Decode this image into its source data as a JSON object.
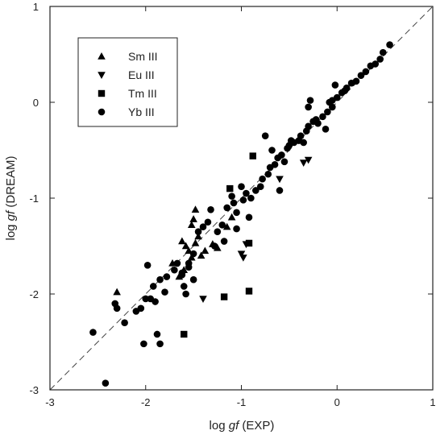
{
  "chart_data": {
    "type": "scatter",
    "title": "",
    "xlabel_prefix": "log ",
    "xlabel_italic": "gf",
    "xlabel_suffix": " (EXP)",
    "ylabel_prefix": "log ",
    "ylabel_italic": "gf",
    "ylabel_suffix": " (DREAM)",
    "xlim": [
      -3,
      1
    ],
    "ylim": [
      -3,
      1
    ],
    "xticks": [
      -3,
      -2,
      -1,
      0,
      1
    ],
    "yticks": [
      -3,
      -2,
      -1,
      0,
      1
    ],
    "grid": false,
    "legend_position": "top-left",
    "reference_line": "y = x (dashed)",
    "series": [
      {
        "name": "Sm III",
        "marker": "triangle-up",
        "points": [
          [
            -2.3,
            -1.98
          ],
          [
            -1.5,
            -1.22
          ],
          [
            -1.48,
            -1.12
          ],
          [
            -1.52,
            -1.28
          ],
          [
            -1.62,
            -1.45
          ],
          [
            -1.58,
            -1.5
          ],
          [
            -1.55,
            -1.55
          ],
          [
            -1.48,
            -1.47
          ],
          [
            -1.45,
            -1.4
          ],
          [
            -1.52,
            -1.62
          ],
          [
            -1.42,
            -1.6
          ],
          [
            -1.38,
            -1.55
          ],
          [
            -1.72,
            -1.68
          ],
          [
            -1.65,
            -1.82
          ],
          [
            -1.6,
            -1.75
          ],
          [
            -1.3,
            -1.48
          ],
          [
            -1.25,
            -1.52
          ],
          [
            -1.15,
            -1.3
          ],
          [
            -1.1,
            -1.2
          ]
        ]
      },
      {
        "name": "Eu III",
        "marker": "triangle-down",
        "points": [
          [
            -1.4,
            -2.05
          ],
          [
            -1.0,
            -1.58
          ],
          [
            -0.98,
            -1.62
          ],
          [
            -0.95,
            -1.48
          ],
          [
            -0.3,
            -0.6
          ],
          [
            -0.35,
            -0.63
          ],
          [
            -0.6,
            -0.8
          ]
        ]
      },
      {
        "name": "Tm III",
        "marker": "square",
        "points": [
          [
            -1.6,
            -2.42
          ],
          [
            -1.18,
            -2.03
          ],
          [
            -0.92,
            -1.97
          ],
          [
            -0.92,
            -1.47
          ],
          [
            -1.12,
            -0.9
          ],
          [
            -0.88,
            -0.56
          ]
        ]
      },
      {
        "name": "Yb III",
        "marker": "circle",
        "points": [
          [
            -2.55,
            -2.4
          ],
          [
            -2.42,
            -2.93
          ],
          [
            -2.32,
            -2.1
          ],
          [
            -2.3,
            -2.15
          ],
          [
            -2.22,
            -2.3
          ],
          [
            -2.02,
            -2.52
          ],
          [
            -1.85,
            -2.52
          ],
          [
            -1.88,
            -2.42
          ],
          [
            -2.05,
            -2.15
          ],
          [
            -1.95,
            -2.05
          ],
          [
            -1.92,
            -1.92
          ],
          [
            -1.98,
            -1.7
          ],
          [
            -1.9,
            -2.08
          ],
          [
            -1.85,
            -1.85
          ],
          [
            -1.8,
            -1.98
          ],
          [
            -1.78,
            -1.82
          ],
          [
            -1.7,
            -1.75
          ],
          [
            -1.67,
            -1.68
          ],
          [
            -1.62,
            -1.8
          ],
          [
            -1.6,
            -1.92
          ],
          [
            -1.55,
            -1.72
          ],
          [
            -1.5,
            -1.58
          ],
          [
            -1.45,
            -1.35
          ],
          [
            -1.4,
            -1.3
          ],
          [
            -1.35,
            -1.25
          ],
          [
            -1.32,
            -1.12
          ],
          [
            -1.28,
            -1.5
          ],
          [
            -1.25,
            -1.35
          ],
          [
            -1.2,
            -1.28
          ],
          [
            -1.15,
            -1.1
          ],
          [
            -1.1,
            -0.98
          ],
          [
            -1.08,
            -1.05
          ],
          [
            -1.05,
            -1.15
          ],
          [
            -1.0,
            -0.88
          ],
          [
            -0.98,
            -1.02
          ],
          [
            -0.95,
            -0.95
          ],
          [
            -0.9,
            -1.0
          ],
          [
            -0.85,
            -0.92
          ],
          [
            -0.8,
            -0.88
          ],
          [
            -0.78,
            -0.8
          ],
          [
            -0.72,
            -0.75
          ],
          [
            -0.7,
            -0.68
          ],
          [
            -0.68,
            -0.5
          ],
          [
            -0.65,
            -0.65
          ],
          [
            -0.62,
            -0.58
          ],
          [
            -0.58,
            -0.55
          ],
          [
            -0.55,
            -0.62
          ],
          [
            -0.52,
            -0.48
          ],
          [
            -0.5,
            -0.45
          ],
          [
            -0.48,
            -0.4
          ],
          [
            -0.45,
            -0.42
          ],
          [
            -0.4,
            -0.4
          ],
          [
            -0.38,
            -0.35
          ],
          [
            -0.35,
            -0.42
          ],
          [
            -0.32,
            -0.3
          ],
          [
            -0.3,
            -0.25
          ],
          [
            -0.3,
            -0.05
          ],
          [
            -0.28,
            0.02
          ],
          [
            -0.25,
            -0.2
          ],
          [
            -0.22,
            -0.18
          ],
          [
            -0.2,
            -0.22
          ],
          [
            -0.15,
            -0.15
          ],
          [
            -0.1,
            -0.1
          ],
          [
            -0.08,
            0.0
          ],
          [
            -0.05,
            0.02
          ],
          [
            -0.02,
            0.18
          ],
          [
            0.0,
            0.05
          ],
          [
            0.05,
            0.1
          ],
          [
            0.08,
            0.12
          ],
          [
            0.1,
            0.15
          ],
          [
            0.15,
            0.2
          ],
          [
            0.2,
            0.22
          ],
          [
            0.25,
            0.28
          ],
          [
            0.3,
            0.32
          ],
          [
            0.35,
            0.38
          ],
          [
            0.4,
            0.4
          ],
          [
            0.45,
            0.45
          ],
          [
            0.48,
            0.52
          ],
          [
            0.55,
            0.6
          ],
          [
            -0.05,
            -0.05
          ],
          [
            -0.12,
            -0.28
          ],
          [
            -0.6,
            -0.92
          ],
          [
            -0.75,
            -0.35
          ],
          [
            -0.92,
            -1.2
          ],
          [
            -1.05,
            -1.32
          ],
          [
            -1.18,
            -1.45
          ],
          [
            -1.5,
            -1.85
          ],
          [
            -1.55,
            -1.68
          ],
          [
            -1.58,
            -2.0
          ],
          [
            -1.62,
            -1.78
          ],
          [
            -2.0,
            -2.05
          ],
          [
            -2.1,
            -2.18
          ]
        ]
      }
    ]
  }
}
